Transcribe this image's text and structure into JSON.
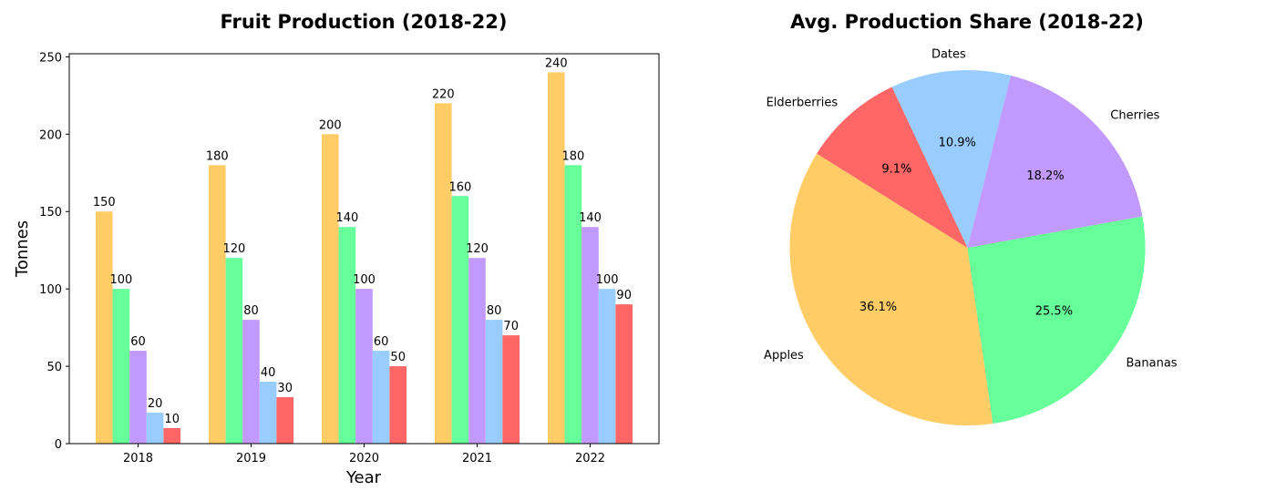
{
  "chart_data": [
    {
      "type": "bar",
      "title": "Fruit Production (2018-22)",
      "xlabel": "Year",
      "ylabel": "Tonnes",
      "categories": [
        "2018",
        "2019",
        "2020",
        "2021",
        "2022"
      ],
      "ylim": [
        0,
        252
      ],
      "yticks": [
        0,
        50,
        100,
        150,
        200,
        250
      ],
      "grid": false,
      "legend": "none",
      "series": [
        {
          "color": "#FFCC66",
          "values": [
            150,
            180,
            200,
            220,
            240
          ]
        },
        {
          "color": "#66FF99",
          "values": [
            100,
            120,
            140,
            160,
            180
          ]
        },
        {
          "color": "#C299FF",
          "values": [
            60,
            80,
            100,
            120,
            140
          ]
        },
        {
          "color": "#99CCFF",
          "values": [
            20,
            40,
            60,
            80,
            100
          ]
        },
        {
          "color": "#FF6666",
          "values": [
            10,
            30,
            50,
            70,
            90
          ]
        }
      ]
    },
    {
      "type": "pie",
      "title": "Avg. Production Share (2018-22)",
      "slices": [
        {
          "label": "Apples",
          "value": 36.1,
          "pct_label": "36.1%",
          "color": "#FFCC66"
        },
        {
          "label": "Bananas",
          "value": 25.5,
          "pct_label": "25.5%",
          "color": "#66FF99"
        },
        {
          "label": "Cherries",
          "value": 18.2,
          "pct_label": "18.2%",
          "color": "#C299FF"
        },
        {
          "label": "Dates",
          "value": 10.9,
          "pct_label": "10.9%",
          "color": "#99CCFF"
        },
        {
          "label": "Elderberries",
          "value": 9.1,
          "pct_label": "9.1%",
          "color": "#FF6666"
        }
      ]
    }
  ]
}
